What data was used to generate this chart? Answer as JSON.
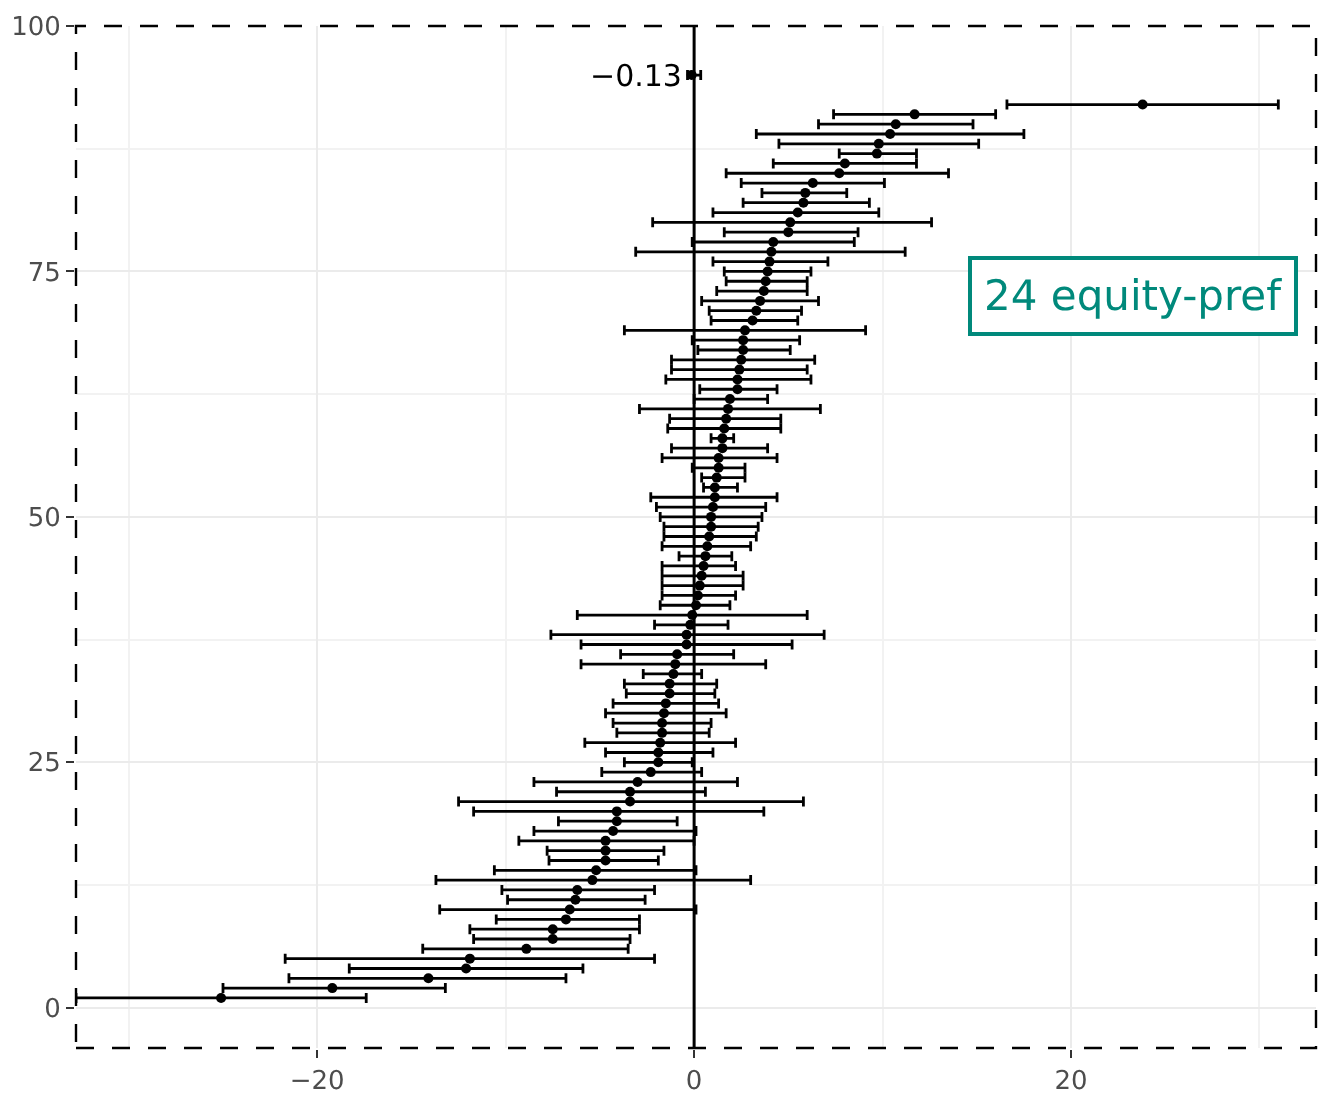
{
  "chart_data": {
    "type": "scatter",
    "xlim": [
      -32.8,
      33
    ],
    "xticks": [
      -20,
      0,
      20
    ],
    "ylim": [
      -4.1,
      100
    ],
    "yticks": [
      0,
      25,
      50,
      75,
      100
    ],
    "grid": true,
    "marker": "circle",
    "series": [
      {
        "color": "#000000",
        "x": [
          -25.1,
          -19.2,
          -14.1,
          -12.1,
          -11.9,
          -8.9,
          -7.5,
          -7.5,
          -6.8,
          -6.6,
          -6.3,
          -6.2,
          -5.4,
          -5.2,
          -4.7,
          -4.7,
          -4.7,
          -4.3,
          -4.1,
          -4.1,
          -3.4,
          -3.4,
          -3.0,
          -2.3,
          -1.9,
          -1.9,
          -1.8,
          -1.7,
          -1.7,
          -1.6,
          -1.5,
          -1.3,
          -1.3,
          -1.1,
          -1.0,
          -0.9,
          -0.4,
          -0.4,
          -0.2,
          -0.1,
          0.1,
          0.2,
          0.3,
          0.4,
          0.5,
          0.6,
          0.7,
          0.8,
          0.9,
          0.9,
          1.0,
          1.1,
          1.1,
          1.2,
          1.3,
          1.3,
          1.5,
          1.5,
          1.6,
          1.7,
          1.8,
          1.9,
          2.3,
          2.3,
          2.4,
          2.5,
          2.6,
          2.6,
          2.7,
          3.1,
          3.3,
          3.5,
          3.7,
          3.8,
          3.9,
          4.0,
          4.1,
          4.2,
          5.0,
          5.1,
          5.5,
          5.8,
          5.9,
          6.3,
          7.7,
          8.0,
          9.7,
          9.8,
          10.4,
          10.7,
          11.7,
          23.8
        ],
        "values": [
          1,
          2,
          3,
          4,
          5,
          6,
          7,
          8,
          9,
          10,
          11,
          12,
          13,
          14,
          15,
          16,
          17,
          18,
          19,
          20,
          21,
          22,
          23,
          24,
          25,
          26,
          27,
          28,
          29,
          30,
          31,
          32,
          33,
          34,
          35,
          36,
          37,
          38,
          39,
          40,
          41,
          42,
          43,
          44,
          45,
          46,
          47,
          48,
          49,
          50,
          51,
          52,
          53,
          54,
          55,
          56,
          57,
          58,
          59,
          60,
          61,
          62,
          63,
          64,
          65,
          66,
          67,
          68,
          69,
          70,
          71,
          72,
          73,
          74,
          75,
          76,
          77,
          78,
          79,
          80,
          81,
          82,
          83,
          84,
          85,
          86,
          87,
          88,
          89,
          90,
          91,
          92
        ],
        "xerrors": [
          [
            -32.8,
            -17.4
          ],
          [
            -25.0,
            -13.2
          ],
          [
            -21.5,
            -6.8
          ],
          [
            -18.3,
            -5.9
          ],
          [
            -21.7,
            -2.1
          ],
          [
            -14.4,
            -3.5
          ],
          [
            -11.7,
            -3.4
          ],
          [
            -11.9,
            -2.9
          ],
          [
            -10.5,
            -2.9
          ],
          [
            -13.5,
            0.1
          ],
          [
            -9.9,
            -2.6
          ],
          [
            -10.2,
            -2.1
          ],
          [
            -13.7,
            3.0
          ],
          [
            -10.6,
            0.1
          ],
          [
            -7.7,
            -1.9
          ],
          [
            -7.8,
            -1.6
          ],
          [
            -9.3,
            0.0
          ],
          [
            -8.5,
            0.1
          ],
          [
            -7.2,
            -0.9
          ],
          [
            -11.7,
            3.7
          ],
          [
            -12.5,
            5.8
          ],
          [
            -7.3,
            0.6
          ],
          [
            -8.5,
            2.3
          ],
          [
            -4.9,
            0.4
          ],
          [
            -3.7,
            -0.1
          ],
          [
            -4.7,
            1.0
          ],
          [
            -5.8,
            2.2
          ],
          [
            -4.1,
            0.8
          ],
          [
            -4.3,
            0.9
          ],
          [
            -4.7,
            1.7
          ],
          [
            -4.3,
            1.3
          ],
          [
            -3.6,
            1.1
          ],
          [
            -3.7,
            1.2
          ],
          [
            -2.7,
            0.4
          ],
          [
            -6.0,
            3.8
          ],
          [
            -3.9,
            2.1
          ],
          [
            -6.0,
            5.2
          ],
          [
            -7.6,
            6.9
          ],
          [
            -2.1,
            1.8
          ],
          [
            -6.2,
            6.0
          ],
          [
            -1.8,
            1.9
          ],
          [
            -1.7,
            2.2
          ],
          [
            -1.7,
            2.6
          ],
          [
            -1.7,
            2.6
          ],
          [
            -1.7,
            2.2
          ],
          [
            -0.8,
            2.0
          ],
          [
            -1.7,
            3.0
          ],
          [
            -1.6,
            3.3
          ],
          [
            -1.6,
            3.4
          ],
          [
            -1.8,
            3.6
          ],
          [
            -2.0,
            3.8
          ],
          [
            -2.3,
            4.4
          ],
          [
            0.5,
            2.3
          ],
          [
            0.4,
            2.7
          ],
          [
            -0.1,
            2.7
          ],
          [
            -1.7,
            4.4
          ],
          [
            -1.2,
            3.9
          ],
          [
            0.9,
            2.1
          ],
          [
            -1.4,
            4.6
          ],
          [
            -1.3,
            4.6
          ],
          [
            -2.9,
            6.7
          ],
          [
            0.0,
            3.9
          ],
          [
            0.3,
            4.4
          ],
          [
            -1.5,
            6.2
          ],
          [
            -1.2,
            6.0
          ],
          [
            -1.2,
            6.4
          ],
          [
            0.2,
            5.1
          ],
          [
            -0.1,
            5.6
          ],
          [
            -3.7,
            9.1
          ],
          [
            0.9,
            5.5
          ],
          [
            0.8,
            5.7
          ],
          [
            0.4,
            6.6
          ],
          [
            1.2,
            6.0
          ],
          [
            1.7,
            6.0
          ],
          [
            1.6,
            6.2
          ],
          [
            1.0,
            7.1
          ],
          [
            -3.1,
            11.2
          ],
          [
            -0.1,
            8.5
          ],
          [
            1.6,
            8.7
          ],
          [
            -2.2,
            12.6
          ],
          [
            1.0,
            9.8
          ],
          [
            2.6,
            9.3
          ],
          [
            3.6,
            8.1
          ],
          [
            2.5,
            10.1
          ],
          [
            1.7,
            13.5
          ],
          [
            4.2,
            11.8
          ],
          [
            7.7,
            11.8
          ],
          [
            4.5,
            15.1
          ],
          [
            3.3,
            17.5
          ],
          [
            6.6,
            14.8
          ],
          [
            7.4,
            16.0
          ],
          [
            16.6,
            31.0
          ]
        ]
      },
      {
        "color": "#000000",
        "x": [
          -0.13
        ],
        "values": [
          95
        ],
        "xerrors": [
          [
            -0.35,
            0.35
          ]
        ]
      }
    ],
    "ref_lines": [
      {
        "axis": "x",
        "value": 0,
        "color": "#000000",
        "line_style": "solid"
      }
    ],
    "annotations": [
      {
        "text": "−0.13",
        "x": -0.13,
        "y": 95
      },
      "24 equity-pref"
    ]
  }
}
